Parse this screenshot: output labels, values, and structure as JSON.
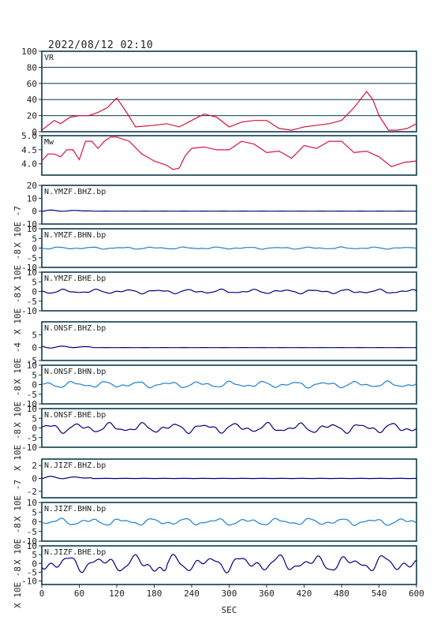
{
  "title": "2022/08/12 02:10",
  "colors": {
    "frame": "#0d3b4f",
    "vr": "#d6133f",
    "trace_dark": "#000080",
    "trace_light": "#1e7fd0",
    "grid": "#0d3b4f"
  },
  "chart_data": [
    {
      "type": "line",
      "panel": "VR",
      "label": "VR",
      "ylim": [
        0,
        100
      ],
      "yticks": [
        "100",
        "80",
        "60",
        "40",
        "20",
        "0"
      ],
      "grid": true,
      "x": [
        0,
        10,
        20,
        30,
        45,
        60,
        75,
        90,
        105,
        120,
        135,
        150,
        165,
        180,
        200,
        220,
        240,
        260,
        280,
        300,
        320,
        340,
        360,
        380,
        400,
        420,
        440,
        460,
        480,
        500,
        520,
        530,
        540,
        555,
        570,
        585,
        600
      ],
      "y": [
        2,
        8,
        14,
        10,
        18,
        20,
        20,
        24,
        30,
        42,
        25,
        6,
        7,
        8,
        10,
        6,
        14,
        22,
        18,
        6,
        12,
        14,
        14,
        4,
        2,
        6,
        8,
        10,
        14,
        30,
        50,
        40,
        20,
        2,
        2,
        4,
        10
      ]
    },
    {
      "type": "line",
      "panel": "Mw",
      "label": "Mw",
      "ylim": [
        3.6,
        5.0
      ],
      "yticks": [
        "5.0",
        "4.5",
        "4.0"
      ],
      "x": [
        0,
        10,
        20,
        30,
        40,
        50,
        60,
        70,
        80,
        90,
        100,
        110,
        120,
        140,
        160,
        180,
        200,
        210,
        220,
        230,
        240,
        260,
        280,
        300,
        320,
        340,
        360,
        380,
        400,
        420,
        440,
        460,
        480,
        500,
        520,
        540,
        560,
        580,
        600
      ],
      "y": [
        4.1,
        4.35,
        4.35,
        4.25,
        4.5,
        4.5,
        4.15,
        4.8,
        4.8,
        4.55,
        4.8,
        4.95,
        4.95,
        4.8,
        4.35,
        4.1,
        3.95,
        3.8,
        3.85,
        4.3,
        4.55,
        4.6,
        4.5,
        4.5,
        4.8,
        4.7,
        4.4,
        4.45,
        4.2,
        4.65,
        4.55,
        4.8,
        4.8,
        4.4,
        4.45,
        4.25,
        3.9,
        4.05,
        4.1
      ]
    },
    {
      "type": "line",
      "panel": "N.YMZF.BHZ.bp",
      "label": "N.YMZF.BHZ.bp",
      "unit": "X 10E -7",
      "ylim": [
        -10,
        20
      ],
      "yticks": [
        "20",
        "10",
        "0",
        "-10"
      ],
      "series": [
        {
          "name": "N.YMZF.BHZ.bp",
          "kind": "z",
          "amp": 0.5
        }
      ]
    },
    {
      "type": "line",
      "panel": "N.YMZF.BHN.bp",
      "label": "N.YMZF.BHN.bp",
      "unit": "X 10E -8",
      "ylim": [
        -10,
        10
      ],
      "yticks": [
        "10",
        "5",
        "0",
        "-5",
        "-10"
      ],
      "series": [
        {
          "name": "N.YMZF.BHN.bp",
          "kind": "h",
          "amp": 0.6
        }
      ]
    },
    {
      "type": "line",
      "panel": "N.YMZF.BHE.bp",
      "label": "N.YMZF.BHE.bp",
      "unit": "X 10E -8",
      "ylim": [
        -10,
        10
      ],
      "yticks": [
        "10",
        "5",
        "0",
        "-5",
        "-10"
      ],
      "series": [
        {
          "name": "N.YMZF.BHE.bp",
          "kind": "h",
          "amp": 1.2
        }
      ]
    },
    {
      "type": "line",
      "panel": "N.ONSF.BHZ.bp",
      "label": "N.ONSF.BHZ.bp",
      "unit": "X 10E -4",
      "ylim": [
        -5,
        10
      ],
      "yticks": [
        "5",
        "0",
        "-5"
      ],
      "series": [
        {
          "name": "N.ONSF.BHZ.bp",
          "kind": "z",
          "amp": 0.4
        }
      ]
    },
    {
      "type": "line",
      "panel": "N.ONSF.BHN.bp",
      "label": "N.ONSF.BHN.bp",
      "unit": "X 10E -8",
      "ylim": [
        -10,
        10
      ],
      "yticks": [
        "10",
        "5",
        "0",
        "-5",
        "-10"
      ],
      "series": [
        {
          "name": "N.ONSF.BHN.bp",
          "kind": "h",
          "amp": 1.8
        }
      ]
    },
    {
      "type": "line",
      "panel": "N.ONSF.BHE.bp",
      "label": "N.ONSF.BHE.bp",
      "unit": "X 10E -8",
      "ylim": [
        -10,
        10
      ],
      "yticks": [
        "10",
        "5",
        "0",
        "-5",
        "-10"
      ],
      "series": [
        {
          "name": "N.ONSF.BHE.bp",
          "kind": "h",
          "amp": 2.8
        }
      ]
    },
    {
      "type": "line",
      "panel": "N.JIZF.BHZ.bp",
      "label": "N.JIZF.BHZ.bp",
      "unit": "X 10E -7",
      "ylim": [
        -3,
        3
      ],
      "yticks": [
        "2",
        "0",
        "-2"
      ],
      "series": [
        {
          "name": "N.JIZF.BHZ.bp",
          "kind": "z",
          "amp": 0.2
        }
      ]
    },
    {
      "type": "line",
      "panel": "N.JIZF.BHN.bp",
      "label": "N.JIZF.BHN.bp",
      "unit": "X 10E -8",
      "ylim": [
        -10,
        10
      ],
      "yticks": [
        "10",
        "5",
        "0",
        "-5",
        "-10"
      ],
      "series": [
        {
          "name": "N.JIZF.BHN.bp",
          "kind": "h",
          "amp": 2.0
        }
      ]
    },
    {
      "type": "line",
      "panel": "N.JIZF.BHE.bp",
      "label": "N.JIZF.BHE.bp",
      "unit": "X 10E -8",
      "ylim": [
        -12,
        10
      ],
      "yticks": [
        "10",
        "5",
        "0",
        "-5",
        "-10"
      ],
      "series": [
        {
          "name": "N.JIZF.BHE.bp",
          "kind": "big",
          "amp": 5
        }
      ]
    }
  ],
  "xaxis": {
    "label": "SEC",
    "xlim": [
      0,
      600
    ],
    "ticks": [
      "0",
      "60",
      "120",
      "180",
      "240",
      "300",
      "360",
      "420",
      "480",
      "540",
      "600"
    ]
  }
}
